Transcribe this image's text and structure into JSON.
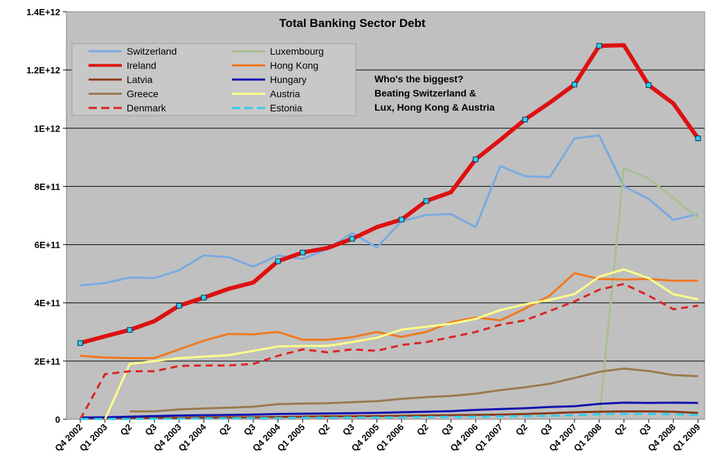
{
  "chart_data": {
    "type": "line",
    "title": "Total Banking Sector Debt",
    "xlabel": "",
    "ylabel": "",
    "ylim": [
      0,
      1400000000000
    ],
    "y_ticks": [
      "0",
      "2E+11",
      "4E+11",
      "6E+11",
      "8E+11",
      "1E+12",
      "1.2E+12",
      "1.4E+12"
    ],
    "x_tick_labels": [
      "Q4 2002",
      "Q1 2003",
      "Q2",
      "Q3",
      "Q4 2003",
      "Q1 2004",
      "Q2",
      "Q3",
      "Q4 2004",
      "Q1 2005",
      "Q2",
      "Q3",
      "Q4 2005",
      "Q1 2006",
      "Q2",
      "Q3",
      "Q4 2006",
      "Q1 2007",
      "Q2",
      "Q3",
      "Q4 2007",
      "Q1 2008",
      "Q2",
      "Q3",
      "Q4 2008",
      "Q1 2009"
    ],
    "legend_position": "top-left",
    "annotation": [
      "Who's the biggest?",
      "Beating Switzerland &",
      "Lux, Hong Kong & Austria"
    ],
    "series": [
      {
        "name": "Switzerland",
        "color": "#7aaae0",
        "width": 3,
        "dash": "",
        "values": [
          460,
          468,
          487,
          485,
          512,
          563,
          557,
          524,
          563,
          551,
          585,
          640,
          590,
          680,
          702,
          705,
          660,
          870,
          835,
          832,
          965,
          975,
          800,
          757,
          685,
          705
        ]
      },
      {
        "name": "Luxembourg",
        "color": "#a8c090",
        "width": 3,
        "dash": "",
        "values": [
          null,
          null,
          null,
          null,
          null,
          null,
          null,
          null,
          null,
          null,
          null,
          null,
          null,
          null,
          null,
          null,
          null,
          null,
          null,
          null,
          null,
          0,
          862,
          827,
          760,
          693
        ]
      },
      {
        "name": "Ireland",
        "color": "#dd1111",
        "width": 6,
        "dash": "",
        "values": [
          262,
          285,
          307,
          337,
          390,
          418,
          448,
          470,
          543,
          573,
          588,
          620,
          660,
          686,
          750,
          780,
          893,
          960,
          1030,
          1088,
          1150,
          1283,
          1285,
          1148,
          1085,
          965
        ]
      },
      {
        "name": "Hong Kong",
        "color": "#f07820",
        "width": 3,
        "dash": "",
        "values": [
          218,
          212,
          210,
          210,
          240,
          270,
          293,
          292,
          300,
          273,
          273,
          282,
          300,
          283,
          300,
          333,
          350,
          340,
          380,
          425,
          502,
          482,
          480,
          482,
          476,
          476
        ]
      },
      {
        "name": "Latvia",
        "color": "#8b3a1a",
        "width": 3,
        "dash": "",
        "values": [
          2,
          3,
          4,
          5,
          5,
          6,
          7,
          7,
          8,
          9,
          10,
          10,
          11,
          12,
          13,
          14,
          15,
          16,
          18,
          21,
          24,
          26,
          27,
          27,
          26,
          22
        ]
      },
      {
        "name": "Hungary",
        "color": "#1010b0",
        "width": 3,
        "dash": "",
        "values": [
          6,
          7,
          9,
          11,
          13,
          14,
          15,
          16,
          18,
          19,
          20,
          21,
          22,
          24,
          26,
          28,
          32,
          35,
          38,
          42,
          45,
          53,
          57,
          56,
          57,
          56
        ]
      },
      {
        "name": "Greece",
        "color": "#9a7a50",
        "width": 3,
        "dash": "",
        "values": [
          null,
          null,
          27,
          27,
          34,
          37,
          40,
          43,
          52,
          54,
          55,
          59,
          62,
          70,
          76,
          80,
          88,
          100,
          110,
          122,
          142,
          163,
          174,
          166,
          152,
          148
        ]
      },
      {
        "name": "Austria",
        "color": "#ffff88",
        "width": 3,
        "dash": "",
        "values": [
          null,
          0,
          190,
          200,
          210,
          215,
          220,
          235,
          250,
          252,
          252,
          265,
          280,
          308,
          318,
          328,
          345,
          375,
          395,
          410,
          430,
          490,
          515,
          485,
          430,
          412
        ]
      },
      {
        "name": "Denmark",
        "color": "#dd2222",
        "width": 3,
        "dash": "10,7",
        "values": [
          0,
          155,
          165,
          165,
          183,
          185,
          185,
          190,
          218,
          240,
          230,
          240,
          235,
          255,
          265,
          282,
          300,
          325,
          340,
          372,
          405,
          445,
          465,
          425,
          378,
          390
        ]
      },
      {
        "name": "Estonia",
        "color": "#33ccee",
        "width": 3,
        "dash": "12,8",
        "values": [
          1,
          1,
          1,
          2,
          2,
          3,
          3,
          4,
          4,
          5,
          5,
          6,
          6,
          7,
          8,
          8,
          9,
          10,
          11,
          12,
          14,
          17,
          19,
          18,
          17,
          15
        ]
      }
    ]
  }
}
